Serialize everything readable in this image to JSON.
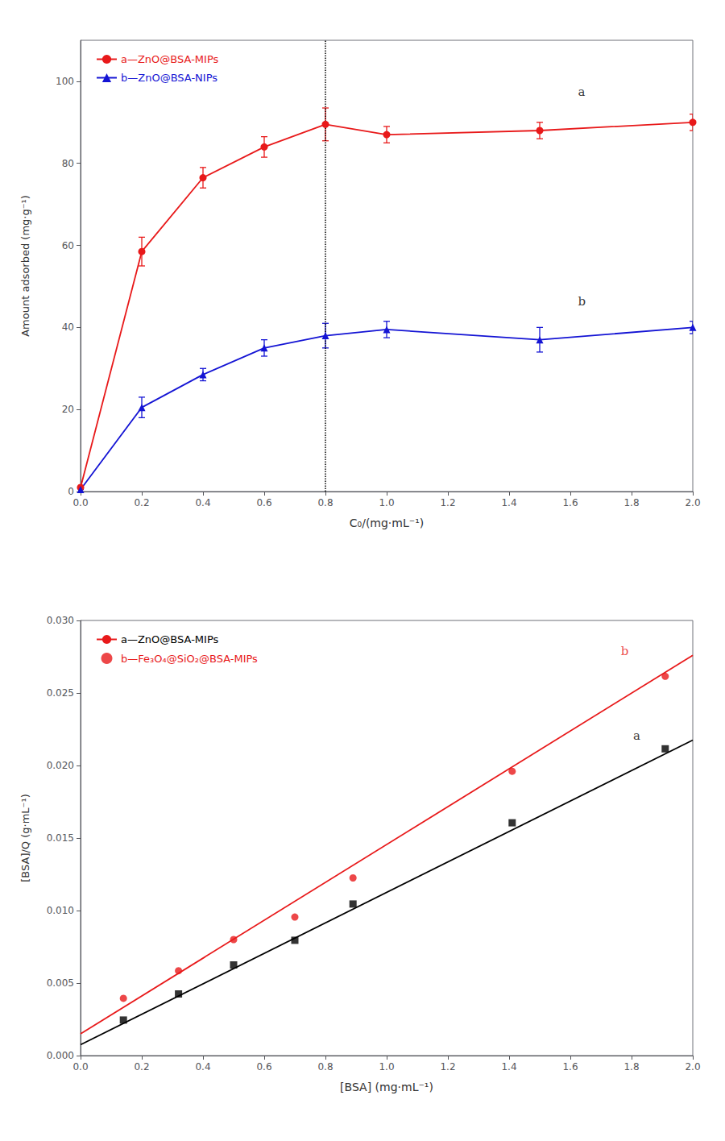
{
  "chart_data": [
    {
      "type": "line",
      "xlabel": "C₀/(mg·mL⁻¹)",
      "ylabel": "Amount adsorbed (mg·g⁻¹)",
      "x": [
        0.0,
        0.2,
        0.4,
        0.6,
        0.8,
        1.0,
        1.5,
        2.0
      ],
      "series": [
        {
          "name": "a—ZnO@BSA-MIPs",
          "color": "#e8191a",
          "marker": "circle",
          "line_style": "solid",
          "values": [
            1.0,
            58.5,
            76.5,
            84.0,
            89.5,
            87.0,
            88.0,
            90.0
          ],
          "yerr": [
            0.0,
            3.5,
            2.5,
            2.5,
            4.0,
            2.0,
            2.0,
            2.0
          ]
        },
        {
          "name": "b—ZnO@BSA-NIPs",
          "color": "#1414d4",
          "marker": "triangle",
          "line_style": "solid",
          "values": [
            0.5,
            20.5,
            28.5,
            35.0,
            38.0,
            39.5,
            37.0,
            40.0
          ],
          "yerr": [
            0.0,
            2.5,
            1.5,
            2.0,
            3.0,
            2.0,
            3.0,
            1.5
          ]
        }
      ],
      "xlim": [
        0.0,
        2.0
      ],
      "ylim": [
        0.0,
        110.0
      ],
      "xticks": [
        {
          "value": 0.0,
          "label": "0.0"
        },
        0.2,
        0.4,
        0.6,
        0.8,
        {
          "value": 1.0,
          "label": "1.0"
        },
        1.2,
        1.4,
        1.6,
        1.8,
        {
          "value": 2.0,
          "label": "2.0"
        }
      ],
      "yticks": [
        0,
        20,
        40,
        60,
        80,
        100
      ],
      "vline": 0.8,
      "annotations": [
        {
          "text": "a",
          "x": 1.62,
          "y": 95.0,
          "color": "#000000"
        },
        {
          "text": "b",
          "x": 1.62,
          "y": 44.0,
          "color": "#000000"
        }
      ],
      "legend": "upper left",
      "grid": false
    },
    {
      "type": "scatter",
      "xlabel": "[BSA] (mg·mL⁻¹)",
      "ylabel": "[BSA]/Q (g·mL⁻¹)",
      "x": [
        0.14,
        0.32,
        0.5,
        0.7,
        0.89,
        1.41,
        1.91
      ],
      "series": [
        {
          "name": "a—ZnO@BSA-MIPs",
          "color": "#000000",
          "marker": "square",
          "values": [
            0.00245,
            0.00425,
            0.00625,
            0.00795,
            0.01045,
            0.01605,
            0.02115
          ],
          "fit_x": [
            0.0,
            2.0
          ],
          "fit_y": [
            0.00075,
            0.02175
          ]
        },
        {
          "name": "b—Fe₃O₄@SiO₂@BSA-MIPs",
          "color": "#e8191a",
          "marker": "circle",
          "values": [
            0.00395,
            0.00585,
            0.008,
            0.00955,
            0.01225,
            0.0196,
            0.02615
          ],
          "fit_x": [
            0.0,
            2.0
          ],
          "fit_y": [
            0.0015,
            0.0276
          ]
        }
      ],
      "xlim": [
        0.0,
        2.0
      ],
      "ylim": [
        0.0,
        0.03
      ],
      "xticks": [
        {
          "value": 0.0,
          "label": "0.0"
        },
        0.2,
        0.4,
        0.6,
        0.8,
        {
          "value": 1.0,
          "label": "1.0"
        },
        1.2,
        1.4,
        1.6,
        1.8,
        {
          "value": 2.0,
          "label": "2.0"
        }
      ],
      "yticks": [
        {
          "value": 0.0,
          "label": "0.000"
        },
        0.005,
        {
          "value": 0.01,
          "label": "0.010"
        },
        0.015,
        {
          "value": 0.02,
          "label": "0.020"
        },
        0.025,
        {
          "value": 0.03,
          "label": "0.030"
        }
      ],
      "annotations": [
        {
          "text": "a",
          "x": 1.8,
          "y": 0.02135,
          "color": "#000000"
        },
        {
          "text": "b",
          "x": 1.76,
          "y": 0.0272,
          "color": "#e8191a"
        }
      ],
      "legend": "upper left",
      "grid": false
    }
  ]
}
